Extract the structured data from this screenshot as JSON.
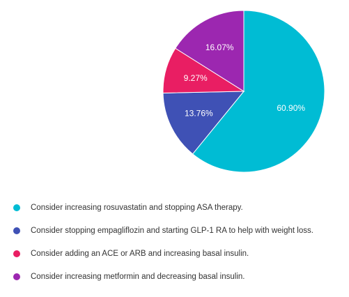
{
  "chart_data": {
    "type": "pie",
    "title": "",
    "slices": [
      {
        "label": "Consider increasing rosuvastatin and stopping ASA therapy.",
        "value": 60.9,
        "display": "60.90%",
        "color": "#00BCD4"
      },
      {
        "label": "Consider stopping empagliflozin and starting GLP-1 RA to help with weight loss.",
        "value": 13.76,
        "display": "13.76%",
        "color": "#3F51B5"
      },
      {
        "label": "Consider adding an ACE or ARB and increasing basal insulin.",
        "value": 9.27,
        "display": "9.27%",
        "color": "#E91E63"
      },
      {
        "label": "Consider increasing metformin and decreasing basal insulin.",
        "value": 16.07,
        "display": "16.07%",
        "color": "#9C27B0"
      }
    ],
    "start_angle": "top",
    "direction": "clockwise",
    "legend_position": "bottom-left",
    "label_color": "#ffffff",
    "legend_text_color": "#333333"
  }
}
